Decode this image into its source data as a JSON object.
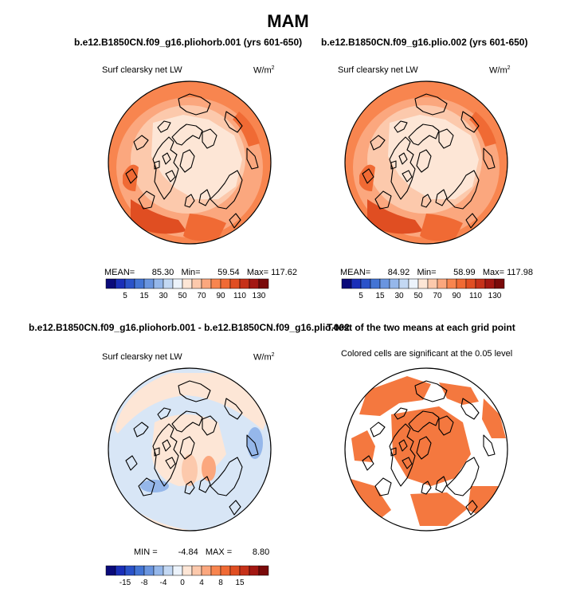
{
  "figure_title": "MAM",
  "colors": {
    "cbar_levels": [
      "#0a0a7a",
      "#1a2fb8",
      "#2a52c9",
      "#4374d4",
      "#6a95df",
      "#95b7ea",
      "#c3d8f3",
      "#ecf3fb",
      "#fde6d6",
      "#fcc9ac",
      "#fba77e",
      "#f8854f",
      "#f06a34",
      "#e04e22",
      "#c63119",
      "#a31712",
      "#7a0a0a"
    ],
    "land_outline": "#000000",
    "signif_fill": "#f4783f"
  },
  "panels": [
    {
      "id": "pliohorb",
      "title": "b.e12.B1850CN.f09_g16.pliohorb.001 (yrs 601-650)",
      "subtitle": "Surf clearsky net LW",
      "units": "W/m",
      "units_sup": "2",
      "stats": {
        "mean_label": "MEAN=",
        "mean": "85.30",
        "min_label": "Min=",
        "min": "59.54",
        "max_label": "Max=",
        "max": "117.62"
      },
      "colorbar_ticks": [
        "5",
        "15",
        "30",
        "50",
        "70",
        "90",
        "110",
        "130"
      ]
    },
    {
      "id": "plio",
      "title": "b.e12.B1850CN.f09_g16.plio.002 (yrs 601-650)",
      "subtitle": "Surf clearsky net LW",
      "units": "W/m",
      "units_sup": "2",
      "stats": {
        "mean_label": "MEAN=",
        "mean": "84.92",
        "min_label": "Min=",
        "min": "58.99",
        "max_label": "Max=",
        "max": "117.98"
      },
      "colorbar_ticks": [
        "5",
        "15",
        "30",
        "50",
        "70",
        "90",
        "110",
        "130"
      ]
    },
    {
      "id": "diff",
      "title": "b.e12.B1850CN.f09_g16.pliohorb.001 - b.e12.B1850CN.f09_g16.plio.002",
      "subtitle": "Surf clearsky net LW",
      "units": "W/m",
      "units_sup": "2",
      "stats": {
        "min_label": "MIN =",
        "min": "-4.84",
        "max_label": "MAX =",
        "max": "8.80"
      },
      "colorbar_ticks": [
        "-15",
        "-8",
        "-4",
        "0",
        "4",
        "8",
        "15"
      ]
    },
    {
      "id": "ttest",
      "title": "T-test of the two means at each grid point",
      "subtitle": "Colored cells are significant at the 0.05 level"
    }
  ],
  "chart_data": [
    {
      "type": "heatmap",
      "title": "b.e12.B1850CN.f09_g16.pliohorb.001 (yrs 601-650)",
      "variable": "Surf clearsky net LW",
      "units": "W/m2",
      "projection": "north-polar stereographic",
      "mean": 85.3,
      "min": 59.54,
      "max": 117.62,
      "levels": [
        5,
        15,
        30,
        50,
        70,
        90,
        110,
        130
      ]
    },
    {
      "type": "heatmap",
      "title": "b.e12.B1850CN.f09_g16.plio.002 (yrs 601-650)",
      "variable": "Surf clearsky net LW",
      "units": "W/m2",
      "projection": "north-polar stereographic",
      "mean": 84.92,
      "min": 58.99,
      "max": 117.98,
      "levels": [
        5,
        15,
        30,
        50,
        70,
        90,
        110,
        130
      ]
    },
    {
      "type": "heatmap",
      "title": "b.e12.B1850CN.f09_g16.pliohorb.001 - b.e12.B1850CN.f09_g16.plio.002",
      "variable": "Surf clearsky net LW",
      "units": "W/m2",
      "projection": "north-polar stereographic",
      "min": -4.84,
      "max": 8.8,
      "levels": [
        -15,
        -8,
        -4,
        0,
        4,
        8,
        15
      ]
    },
    {
      "type": "heatmap",
      "title": "T-test of the two means at each grid point",
      "subtitle": "Colored cells are significant at the 0.05 level",
      "significance_level": 0.05,
      "projection": "north-polar stereographic"
    }
  ]
}
